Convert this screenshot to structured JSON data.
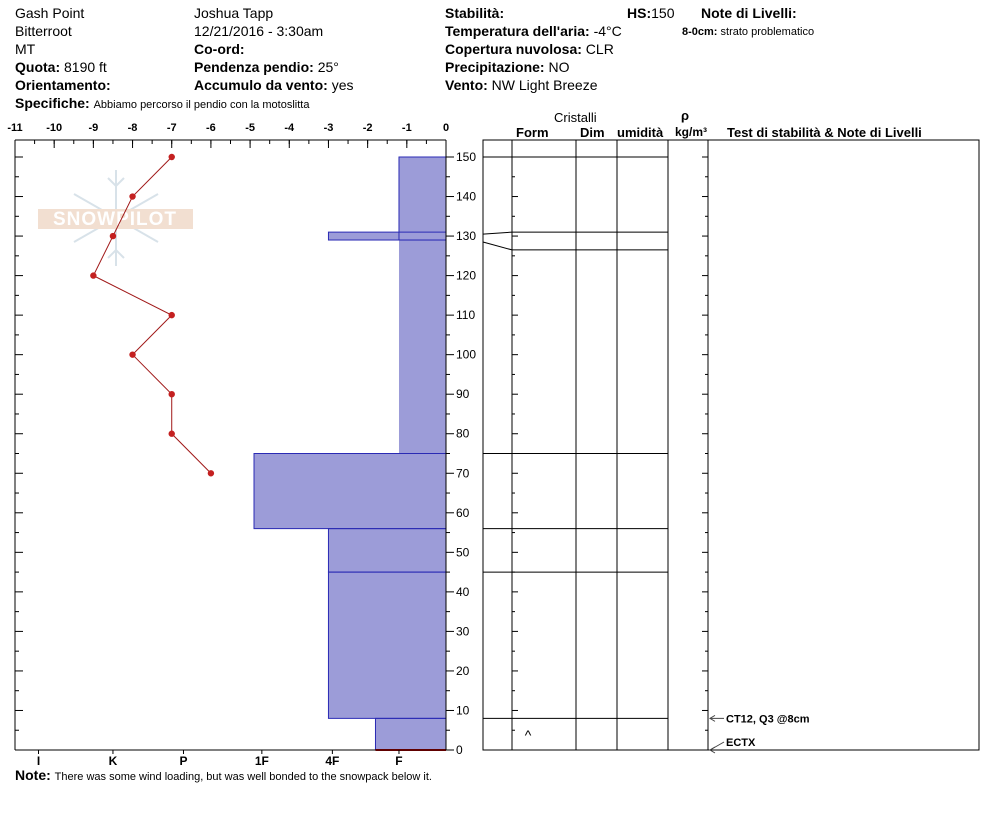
{
  "header": {
    "location": "Gash Point",
    "range": "Bitterroot",
    "state": "MT",
    "elevation_label": "Quota:",
    "elevation_value": "8190 ft",
    "aspect_label": "Orientamento:",
    "aspect_value": "",
    "specifics_label": "Specifiche:",
    "specifics_value": "Abbiamo percorso il pendio con la motoslitta",
    "observer": "Joshua Tapp",
    "datetime": "12/21/2016 - 3:30am",
    "coord_label": "Co-ord:",
    "slope_label": "Pendenza pendio:",
    "slope_value": "25°",
    "wind_loading_label": "Accumulo da vento:",
    "wind_loading_value": "yes",
    "stability_label": "Stabilità:",
    "hs_label": "HS:",
    "hs_value": "150",
    "air_temp_label": "Temperatura dell'aria:",
    "air_temp_value": "-4°C",
    "sky_label": "Copertura nuvolosa:",
    "sky_value": "CLR",
    "precip_label": "Precipitazione:",
    "precip_value": "NO",
    "wind_label": "Vento:",
    "wind_value": "NW Light Breeze",
    "layer_notes_label": "Note di Livelli:",
    "layer_note_range": "8-0cm:",
    "layer_note_text": "strato problematico"
  },
  "footer": {
    "note_label": "Note:",
    "note_text": "There was some wind loading, but was well bonded to the snowpack below it."
  },
  "columns": {
    "crystals": "Cristalli",
    "form": "Form",
    "size": "Dim",
    "moisture": "umidità",
    "rho": "ρ",
    "density_unit": "kg/m³",
    "tests": "Test di stabilità & Note di Livelli"
  },
  "watermark": "SNOWPILOT",
  "chart_data": {
    "type": "snow-profile",
    "temperature_axis": {
      "ticks": [
        -11,
        -10,
        -9,
        -8,
        -7,
        -6,
        -5,
        -4,
        -3,
        -2,
        -1,
        0
      ],
      "range": [
        -11,
        0
      ]
    },
    "height_axis": {
      "ticks": [
        0,
        10,
        20,
        30,
        40,
        50,
        60,
        70,
        80,
        90,
        100,
        110,
        120,
        130,
        140,
        150
      ],
      "range": [
        0,
        150
      ]
    },
    "hardness_axis": {
      "labels": [
        "I",
        "K",
        "P",
        "1F",
        "4F",
        "F"
      ],
      "positions": [
        -10.4,
        -8.5,
        -6.7,
        -4.7,
        -2.9,
        -1.2
      ]
    },
    "temperature_profile": [
      {
        "height": 150,
        "temp": -7
      },
      {
        "height": 140,
        "temp": -8
      },
      {
        "height": 130,
        "temp": -8.5
      },
      {
        "height": 120,
        "temp": -9
      },
      {
        "height": 110,
        "temp": -7
      },
      {
        "height": 100,
        "temp": -8
      },
      {
        "height": 90,
        "temp": -7
      },
      {
        "height": 80,
        "temp": -7
      },
      {
        "height": 70,
        "temp": -6
      }
    ],
    "hardness_layers": [
      {
        "top": 150,
        "bottom": 129,
        "hardness_temp": -1.2
      },
      {
        "top": 131,
        "bottom": 129,
        "hardness_temp": -3.0
      },
      {
        "top": 75,
        "bottom": 56,
        "hardness_temp": -4.9
      },
      {
        "top": 56,
        "bottom": 45,
        "hardness_temp": -3.0
      },
      {
        "top": 45,
        "bottom": 8,
        "hardness_temp": -3.0
      },
      {
        "top": 8,
        "bottom": 0,
        "hardness_temp": -1.8
      }
    ],
    "fill_layers": [
      {
        "top": 150,
        "bottom": 131,
        "hardness_temp": -1.2
      },
      {
        "top": 131,
        "bottom": 129,
        "hardness_temp": -3.0
      },
      {
        "top": 129,
        "bottom": 75,
        "hardness_temp": -1.2
      },
      {
        "top": 75,
        "bottom": 56,
        "hardness_temp": -4.9
      },
      {
        "top": 56,
        "bottom": 8,
        "hardness_temp": -3.0
      },
      {
        "top": 8,
        "bottom": 0,
        "hardness_temp": -1.8
      }
    ],
    "layer_boundaries": [
      150,
      131,
      126.5,
      75,
      56,
      45,
      8,
      0
    ],
    "crystal_symbols": [
      {
        "height": 4,
        "symbol": "^"
      }
    ],
    "stability_tests": [
      {
        "height": 8,
        "label": "CT12, Q3 @8cm"
      },
      {
        "height": 0,
        "label": "ECTX"
      }
    ]
  }
}
